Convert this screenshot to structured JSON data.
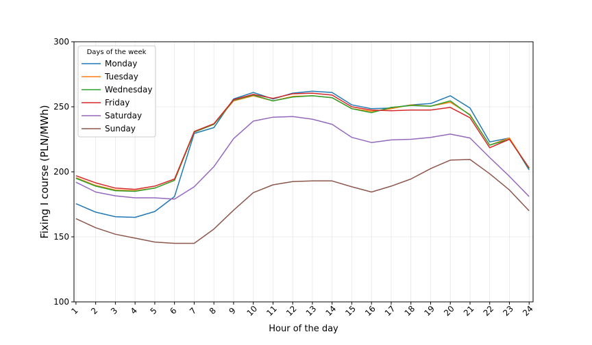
{
  "chart_data": {
    "type": "line",
    "title": "",
    "xlabel": "Hour of the day",
    "ylabel": "Fixing I course (PLN/MWh)",
    "ylim": [
      100,
      300
    ],
    "xlim": [
      0.9,
      24.2
    ],
    "y_ticks": [
      "100",
      "150",
      "200",
      "250",
      "300"
    ],
    "x": [
      1,
      2,
      3,
      4,
      5,
      6,
      7,
      8,
      9,
      10,
      11,
      12,
      13,
      14,
      15,
      16,
      17,
      18,
      19,
      20,
      21,
      22,
      23,
      24
    ],
    "x_tick_labels": [
      "1",
      "2",
      "3",
      "4",
      "5",
      "6",
      "7",
      "8",
      "9",
      "10",
      "11",
      "12",
      "13",
      "14",
      "15",
      "16",
      "17",
      "18",
      "19",
      "20",
      "21",
      "22",
      "23",
      "24"
    ],
    "grid": true,
    "legend": {
      "title": "Days of the week",
      "placement": "top-left"
    },
    "series": [
      {
        "name": "Monday",
        "color": "#1f77b4",
        "values": [
          175.5,
          169,
          165.5,
          165,
          169.5,
          181,
          229.5,
          234,
          256,
          261,
          256,
          260.5,
          262,
          261,
          251.5,
          248.5,
          249,
          251.5,
          252.5,
          258.5,
          249,
          223,
          226,
          201.5
        ]
      },
      {
        "name": "Tuesday",
        "color": "#ff7f0e",
        "values": [
          195.5,
          189.5,
          186,
          185.5,
          187.5,
          193.5,
          230.5,
          236.5,
          254.5,
          258.5,
          254.5,
          258,
          258.5,
          257,
          248.5,
          246.5,
          248.5,
          251.5,
          250.5,
          253.5,
          244,
          220.5,
          226,
          202.5
        ]
      },
      {
        "name": "Wednesday",
        "color": "#2ca02c",
        "values": [
          195,
          189,
          185.5,
          185,
          187.5,
          193.5,
          230.5,
          236.5,
          255,
          259,
          254.5,
          257.5,
          258.5,
          257,
          248.5,
          245.5,
          249.5,
          251,
          250.5,
          254.5,
          243.5,
          220.5,
          225,
          202.5
        ]
      },
      {
        "name": "Friday",
        "color": "#d62728",
        "values": [
          197,
          191.5,
          187.5,
          186.5,
          189,
          194.5,
          231,
          237,
          255.5,
          259.5,
          256.5,
          260,
          260.5,
          259,
          250,
          247.5,
          247,
          247.5,
          247.5,
          249.5,
          241.5,
          218.5,
          225,
          203
        ]
      },
      {
        "name": "Saturday",
        "color": "#9467bd",
        "values": [
          192,
          184.5,
          181.5,
          180,
          180,
          179,
          188.5,
          204,
          225.5,
          239,
          242,
          242.5,
          240.5,
          236.5,
          226.5,
          222.5,
          224.5,
          225,
          226.5,
          229,
          226,
          211,
          196.5,
          181
        ]
      },
      {
        "name": "Sunday",
        "color": "#8c564b",
        "values": [
          164,
          157,
          152,
          149,
          146,
          145,
          145,
          156,
          170.5,
          184,
          190,
          192.5,
          193,
          193,
          188.5,
          184.5,
          189,
          194.5,
          202.5,
          209,
          209.5,
          198.5,
          186,
          170
        ]
      }
    ]
  }
}
